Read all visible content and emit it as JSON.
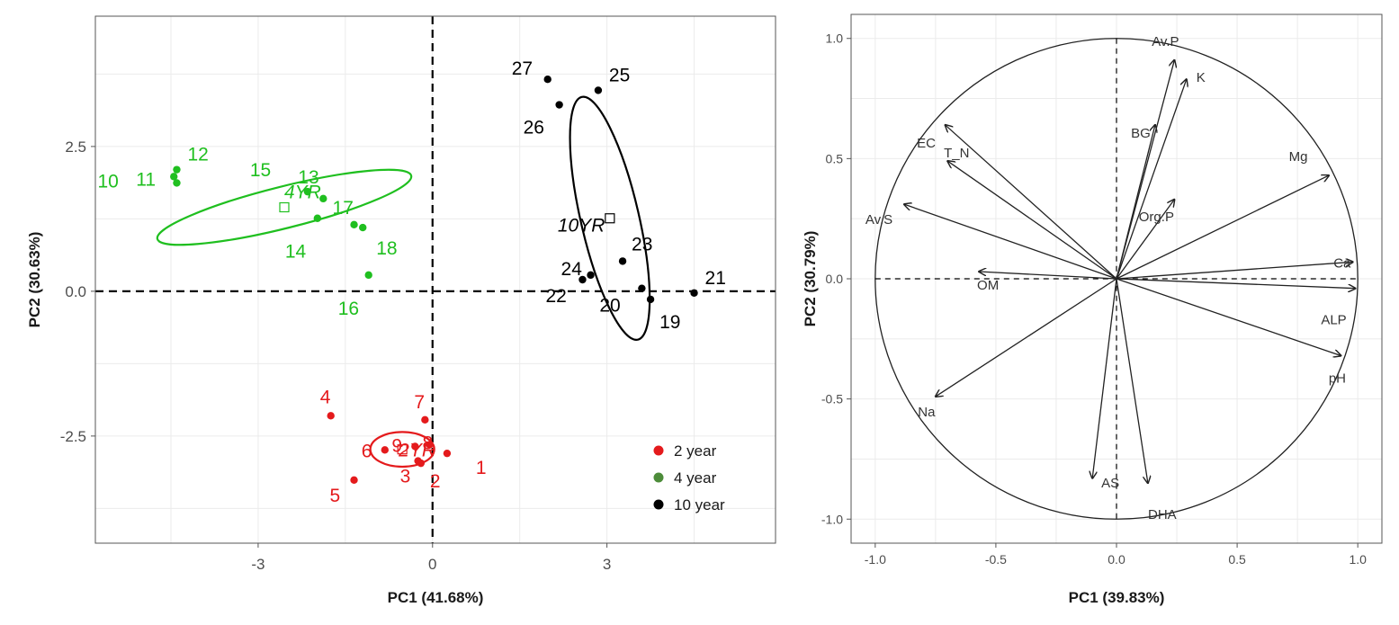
{
  "colors": {
    "2 year": "#e41a1c",
    "4 year": "#1fbf1f",
    "10 year": "#000000",
    "legend_4year": "#4d8c3a"
  },
  "chart_data": [
    {
      "type": "scatter",
      "xlabel": "PC1 (41.68%)",
      "ylabel": "PC2 (30.63%)",
      "xlim": [
        -5.8,
        5.9
      ],
      "ylim": [
        -4.35,
        4.75
      ],
      "xticks": [
        -3,
        0,
        3
      ],
      "yticks": [
        -2.5,
        0.0,
        2.5
      ],
      "xtick_labels": [
        "-3",
        "0",
        "3"
      ],
      "ytick_labels": [
        "-2.5",
        "0.0",
        "2.5"
      ],
      "grid": true,
      "legend_position": "bottom-right",
      "legend": [
        "2 year",
        "4 year",
        "10 year"
      ],
      "series": [
        {
          "name": "2 year",
          "points": [
            {
              "label": "1",
              "x": 0.25,
              "y": -2.8
            },
            {
              "label": "2",
              "x": -0.2,
              "y": -2.97
            },
            {
              "label": "3",
              "x": -0.25,
              "y": -2.93
            },
            {
              "label": "4",
              "x": -1.75,
              "y": -2.15
            },
            {
              "label": "5",
              "x": -1.35,
              "y": -3.26
            },
            {
              "label": "6",
              "x": -0.82,
              "y": -2.74
            },
            {
              "label": "7",
              "x": -0.13,
              "y": -2.22
            },
            {
              "label": "8",
              "x": -0.05,
              "y": -2.65
            },
            {
              "label": "9",
              "x": -0.3,
              "y": -2.68
            }
          ],
          "centroid": {
            "label": "2YR",
            "x": -0.52,
            "y": -2.73
          },
          "ellipse": {
            "cx": -0.52,
            "cy": -2.73,
            "rx": 0.55,
            "ry": 0.3,
            "angle": 0
          }
        },
        {
          "name": "4 year",
          "points": [
            {
              "label": "10",
              "x": -4.4,
              "y": 1.87
            },
            {
              "label": "11",
              "x": -4.45,
              "y": 1.98
            },
            {
              "label": "12",
              "x": -4.4,
              "y": 2.1
            },
            {
              "label": "13",
              "x": -1.88,
              "y": 1.6
            },
            {
              "label": "14",
              "x": -1.98,
              "y": 1.26
            },
            {
              "label": "15",
              "x": -2.15,
              "y": 1.72
            },
            {
              "label": "16",
              "x": -1.1,
              "y": 0.28
            },
            {
              "label": "17",
              "x": -1.35,
              "y": 1.15
            },
            {
              "label": "18",
              "x": -1.2,
              "y": 1.1
            }
          ],
          "centroid": {
            "label": "4YR",
            "x": -2.55,
            "y": 1.45
          },
          "ellipse": {
            "cx": -2.55,
            "cy": 1.45,
            "rx": 2.25,
            "ry": 0.36,
            "angle": -14
          }
        },
        {
          "name": "10 year",
          "points": [
            {
              "label": "19",
              "x": 3.75,
              "y": -0.14
            },
            {
              "label": "20",
              "x": 3.6,
              "y": 0.05
            },
            {
              "label": "21",
              "x": 4.5,
              "y": -0.03
            },
            {
              "label": "22",
              "x": 2.58,
              "y": 0.2
            },
            {
              "label": "23",
              "x": 3.27,
              "y": 0.52
            },
            {
              "label": "24",
              "x": 2.72,
              "y": 0.28
            },
            {
              "label": "25",
              "x": 2.85,
              "y": 3.47
            },
            {
              "label": "26",
              "x": 2.18,
              "y": 3.22
            },
            {
              "label": "27",
              "x": 1.98,
              "y": 3.66
            }
          ],
          "centroid": {
            "label": "10YR",
            "x": 3.05,
            "y": 1.26
          },
          "ellipse": {
            "cx": 3.05,
            "cy": 1.26,
            "rx": 0.5,
            "ry": 2.15,
            "angle": -13
          }
        }
      ]
    },
    {
      "type": "scatter",
      "subtype": "correlation-circle",
      "xlabel": "PC1 (39.83%)",
      "ylabel": "PC2 (30.79%)",
      "xlim": [
        -1.1,
        1.1
      ],
      "ylim": [
        -1.1,
        1.1
      ],
      "xticks": [
        -1.0,
        -0.5,
        0.0,
        0.5,
        1.0
      ],
      "yticks": [
        -1.0,
        -0.5,
        0.0,
        0.5,
        1.0
      ],
      "xtick_labels": [
        "-1.0",
        "-0.5",
        "0.0",
        "0.5",
        "1.0"
      ],
      "ytick_labels": [
        "-1.0",
        "-0.5",
        "0.0",
        "0.5",
        "1.0"
      ],
      "grid": true,
      "vectors": [
        {
          "name": "Av.P",
          "x": 0.24,
          "y": 0.91
        },
        {
          "name": "K",
          "x": 0.29,
          "y": 0.83
        },
        {
          "name": "BG",
          "x": 0.16,
          "y": 0.64
        },
        {
          "name": "Mg",
          "x": 0.88,
          "y": 0.43
        },
        {
          "name": "Org.P",
          "x": 0.24,
          "y": 0.33
        },
        {
          "name": "EC",
          "x": -0.71,
          "y": 0.64
        },
        {
          "name": "T_N",
          "x": -0.7,
          "y": 0.49
        },
        {
          "name": "Av.S",
          "x": -0.88,
          "y": 0.31
        },
        {
          "name": "OM",
          "x": -0.57,
          "y": 0.03
        },
        {
          "name": "Ca",
          "x": 0.98,
          "y": 0.07
        },
        {
          "name": "ALP",
          "x": 0.99,
          "y": -0.04
        },
        {
          "name": "pH",
          "x": 0.93,
          "y": -0.32
        },
        {
          "name": "Na",
          "x": -0.75,
          "y": -0.49
        },
        {
          "name": "AS",
          "x": -0.1,
          "y": -0.83
        },
        {
          "name": "DHA",
          "x": 0.13,
          "y": -0.85
        }
      ]
    }
  ]
}
